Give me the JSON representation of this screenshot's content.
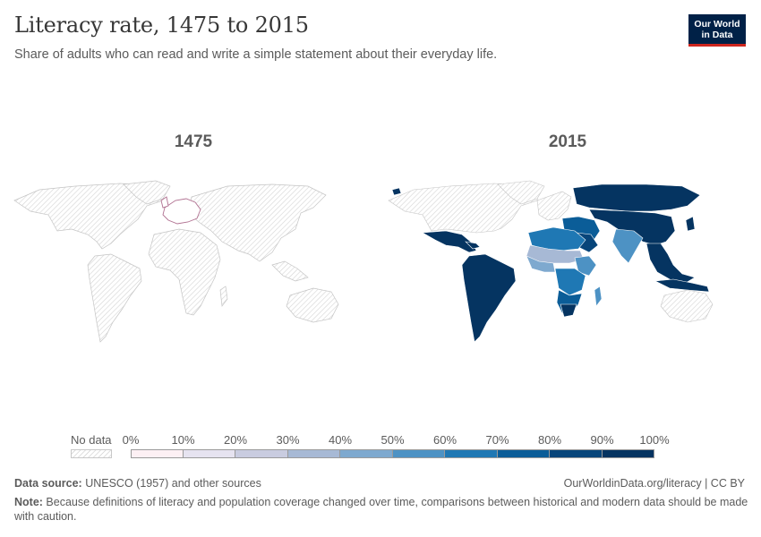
{
  "header": {
    "title": "Literacy rate, 1475 to 2015",
    "subtitle": "Share of adults who can read and write a simple statement about their everyday life.",
    "logo_line1": "Our World",
    "logo_line2": "in Data"
  },
  "maps": [
    {
      "year": "1475"
    },
    {
      "year": "2015"
    }
  ],
  "legend": {
    "no_data_label": "No data",
    "ticks": [
      "0%",
      "10%",
      "20%",
      "30%",
      "40%",
      "50%",
      "60%",
      "70%",
      "80%",
      "90%",
      "100%"
    ],
    "colors": [
      "#fdf0f4",
      "#e6e3f0",
      "#c9cce0",
      "#a7b9d5",
      "#7ea9cf",
      "#4d92c4",
      "#1f78b4",
      "#0b5d98",
      "#07457a",
      "#053461"
    ]
  },
  "footer": {
    "source_label": "Data source:",
    "source_text": " UNESCO (1957) and other sources",
    "link": "OurWorldinData.org/literacy | CC BY",
    "note_label": "Note:",
    "note_text": " Because definitions of literacy and population coverage changed over time, comparisons between historical and modern data should be made with caution."
  },
  "colors": {
    "title": "#373737",
    "text": "#5b5b5b",
    "logo_bg": "#002147",
    "logo_accent": "#ce261e",
    "hatch": "#d0d0d0",
    "darkest": "#053461"
  }
}
